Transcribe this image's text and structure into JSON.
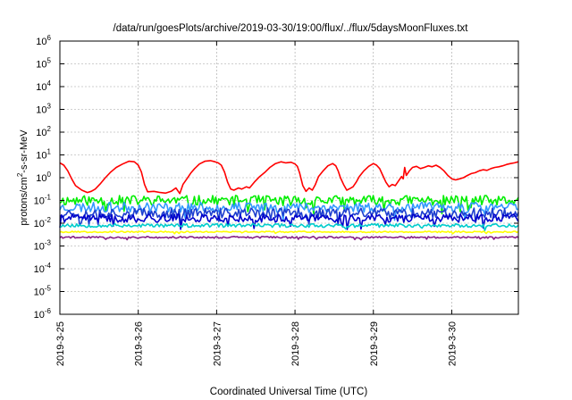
{
  "chart_data": {
    "type": "line",
    "title": "/data/run/goesPlots/archive/2019-03-30/19:00/flux/../flux/5daysMoonFluxes.txt",
    "xlabel": "Coordinated Universal Time (UTC)",
    "ylabel_parts": [
      "protons/cm",
      "2",
      "-s-sr-MeV"
    ],
    "x_ticks": [
      "2019-3-25",
      "2019-3-26",
      "2019-3-27",
      "2019-3-28",
      "2019-3-29",
      "2019-3-30"
    ],
    "y_ticks": [
      {
        "base": "10",
        "exp": "6"
      },
      {
        "base": "10",
        "exp": "5"
      },
      {
        "base": "10",
        "exp": "4"
      },
      {
        "base": "10",
        "exp": "3"
      },
      {
        "base": "10",
        "exp": "2"
      },
      {
        "base": "10",
        "exp": "1"
      },
      {
        "base": "10",
        "exp": "0"
      },
      {
        "base": "10",
        "exp": "-1"
      },
      {
        "base": "10",
        "exp": "-2"
      },
      {
        "base": "10",
        "exp": "-3"
      },
      {
        "base": "10",
        "exp": "-4"
      },
      {
        "base": "10",
        "exp": "-5"
      },
      {
        "base": "10",
        "exp": "-6"
      }
    ],
    "x_range_days": [
      0,
      5.85
    ],
    "y_scale": "log",
    "ylim_log10": [
      -6,
      6
    ],
    "grid": true,
    "series": [
      {
        "color": "#ff0000",
        "values": [
          [
            0.0,
            0.65
          ],
          [
            0.05,
            0.55
          ],
          [
            0.1,
            0.3
          ],
          [
            0.15,
            -0.05
          ],
          [
            0.2,
            -0.35
          ],
          [
            0.28,
            -0.55
          ],
          [
            0.35,
            -0.65
          ],
          [
            0.4,
            -0.6
          ],
          [
            0.45,
            -0.5
          ],
          [
            0.52,
            -0.25
          ],
          [
            0.58,
            0.0
          ],
          [
            0.65,
            0.25
          ],
          [
            0.72,
            0.45
          ],
          [
            0.8,
            0.6
          ],
          [
            0.88,
            0.72
          ],
          [
            0.95,
            0.7
          ],
          [
            1.0,
            0.55
          ],
          [
            1.04,
            0.25
          ],
          [
            1.08,
            -0.3
          ],
          [
            1.12,
            -0.62
          ],
          [
            1.2,
            -0.6
          ],
          [
            1.28,
            -0.65
          ],
          [
            1.35,
            -0.68
          ],
          [
            1.42,
            -0.6
          ],
          [
            1.48,
            -0.45
          ],
          [
            1.53,
            -0.7
          ],
          [
            1.57,
            -0.3
          ],
          [
            1.62,
            -0.05
          ],
          [
            1.67,
            0.2
          ],
          [
            1.72,
            0.4
          ],
          [
            1.78,
            0.6
          ],
          [
            1.85,
            0.72
          ],
          [
            1.92,
            0.75
          ],
          [
            1.98,
            0.7
          ],
          [
            2.02,
            0.65
          ],
          [
            2.06,
            0.55
          ],
          [
            2.1,
            0.25
          ],
          [
            2.14,
            -0.2
          ],
          [
            2.18,
            -0.5
          ],
          [
            2.22,
            -0.55
          ],
          [
            2.28,
            -0.45
          ],
          [
            2.32,
            -0.5
          ],
          [
            2.38,
            -0.4
          ],
          [
            2.42,
            -0.45
          ],
          [
            2.48,
            -0.2
          ],
          [
            2.55,
            0.05
          ],
          [
            2.62,
            0.25
          ],
          [
            2.68,
            0.45
          ],
          [
            2.75,
            0.62
          ],
          [
            2.82,
            0.7
          ],
          [
            2.88,
            0.65
          ],
          [
            2.95,
            0.68
          ],
          [
            3.0,
            0.6
          ],
          [
            3.03,
            0.5
          ],
          [
            3.06,
            0.2
          ],
          [
            3.1,
            -0.35
          ],
          [
            3.14,
            -0.6
          ],
          [
            3.18,
            -0.45
          ],
          [
            3.22,
            -0.55
          ],
          [
            3.26,
            -0.3
          ],
          [
            3.3,
            0.05
          ],
          [
            3.36,
            0.3
          ],
          [
            3.42,
            0.52
          ],
          [
            3.48,
            0.62
          ],
          [
            3.52,
            0.52
          ],
          [
            3.55,
            0.3
          ],
          [
            3.58,
            0.0
          ],
          [
            3.62,
            -0.3
          ],
          [
            3.66,
            -0.55
          ],
          [
            3.7,
            -0.48
          ],
          [
            3.74,
            -0.4
          ],
          [
            3.78,
            -0.2
          ],
          [
            3.82,
            0.05
          ],
          [
            3.88,
            0.3
          ],
          [
            3.94,
            0.5
          ],
          [
            4.0,
            0.62
          ],
          [
            4.04,
            0.55
          ],
          [
            4.08,
            0.4
          ],
          [
            4.12,
            0.1
          ],
          [
            4.16,
            -0.2
          ],
          [
            4.2,
            -0.4
          ],
          [
            4.24,
            -0.3
          ],
          [
            4.28,
            -0.35
          ],
          [
            4.32,
            -0.15
          ],
          [
            4.36,
            0.05
          ],
          [
            4.38,
            -0.05
          ],
          [
            4.4,
            0.45
          ],
          [
            4.42,
            0.1
          ],
          [
            4.46,
            0.3
          ],
          [
            4.5,
            0.45
          ],
          [
            4.55,
            0.5
          ],
          [
            4.6,
            0.4
          ],
          [
            4.65,
            0.45
          ],
          [
            4.7,
            0.52
          ],
          [
            4.75,
            0.48
          ],
          [
            4.8,
            0.55
          ],
          [
            4.85,
            0.45
          ],
          [
            4.9,
            0.3
          ],
          [
            4.95,
            0.1
          ],
          [
            5.0,
            -0.05
          ],
          [
            5.05,
            -0.1
          ],
          [
            5.1,
            -0.05
          ],
          [
            5.15,
            0.0
          ],
          [
            5.2,
            0.1
          ],
          [
            5.25,
            0.18
          ],
          [
            5.3,
            0.22
          ],
          [
            5.35,
            0.3
          ],
          [
            5.4,
            0.35
          ],
          [
            5.45,
            0.32
          ],
          [
            5.5,
            0.4
          ],
          [
            5.55,
            0.45
          ],
          [
            5.6,
            0.48
          ],
          [
            5.65,
            0.52
          ],
          [
            5.7,
            0.58
          ],
          [
            5.75,
            0.62
          ],
          [
            5.8,
            0.65
          ],
          [
            5.85,
            0.7
          ]
        ]
      },
      {
        "color": "#00ee00",
        "noise": {
          "center": -1.0,
          "amp": 0.22,
          "seed": 11
        }
      },
      {
        "color": "#3399ff",
        "noise": {
          "center": -1.3,
          "amp": 0.22,
          "seed": 23
        }
      },
      {
        "color": "#1f3fcf",
        "noise": {
          "center": -1.55,
          "amp": 0.22,
          "seed": 37
        }
      },
      {
        "color": "#0000cc",
        "noise": {
          "center": -1.78,
          "amp": 0.18,
          "seed": 41
        }
      },
      {
        "color": "#00cccc",
        "noise": {
          "center": -2.1,
          "amp": 0.08,
          "seed": 53
        }
      },
      {
        "color": "#ffff00",
        "noise": {
          "center": -2.38,
          "amp": 0.03,
          "seed": 67
        }
      },
      {
        "color": "#882288",
        "noise": {
          "center": -2.62,
          "amp": 0.04,
          "seed": 79
        }
      }
    ]
  }
}
